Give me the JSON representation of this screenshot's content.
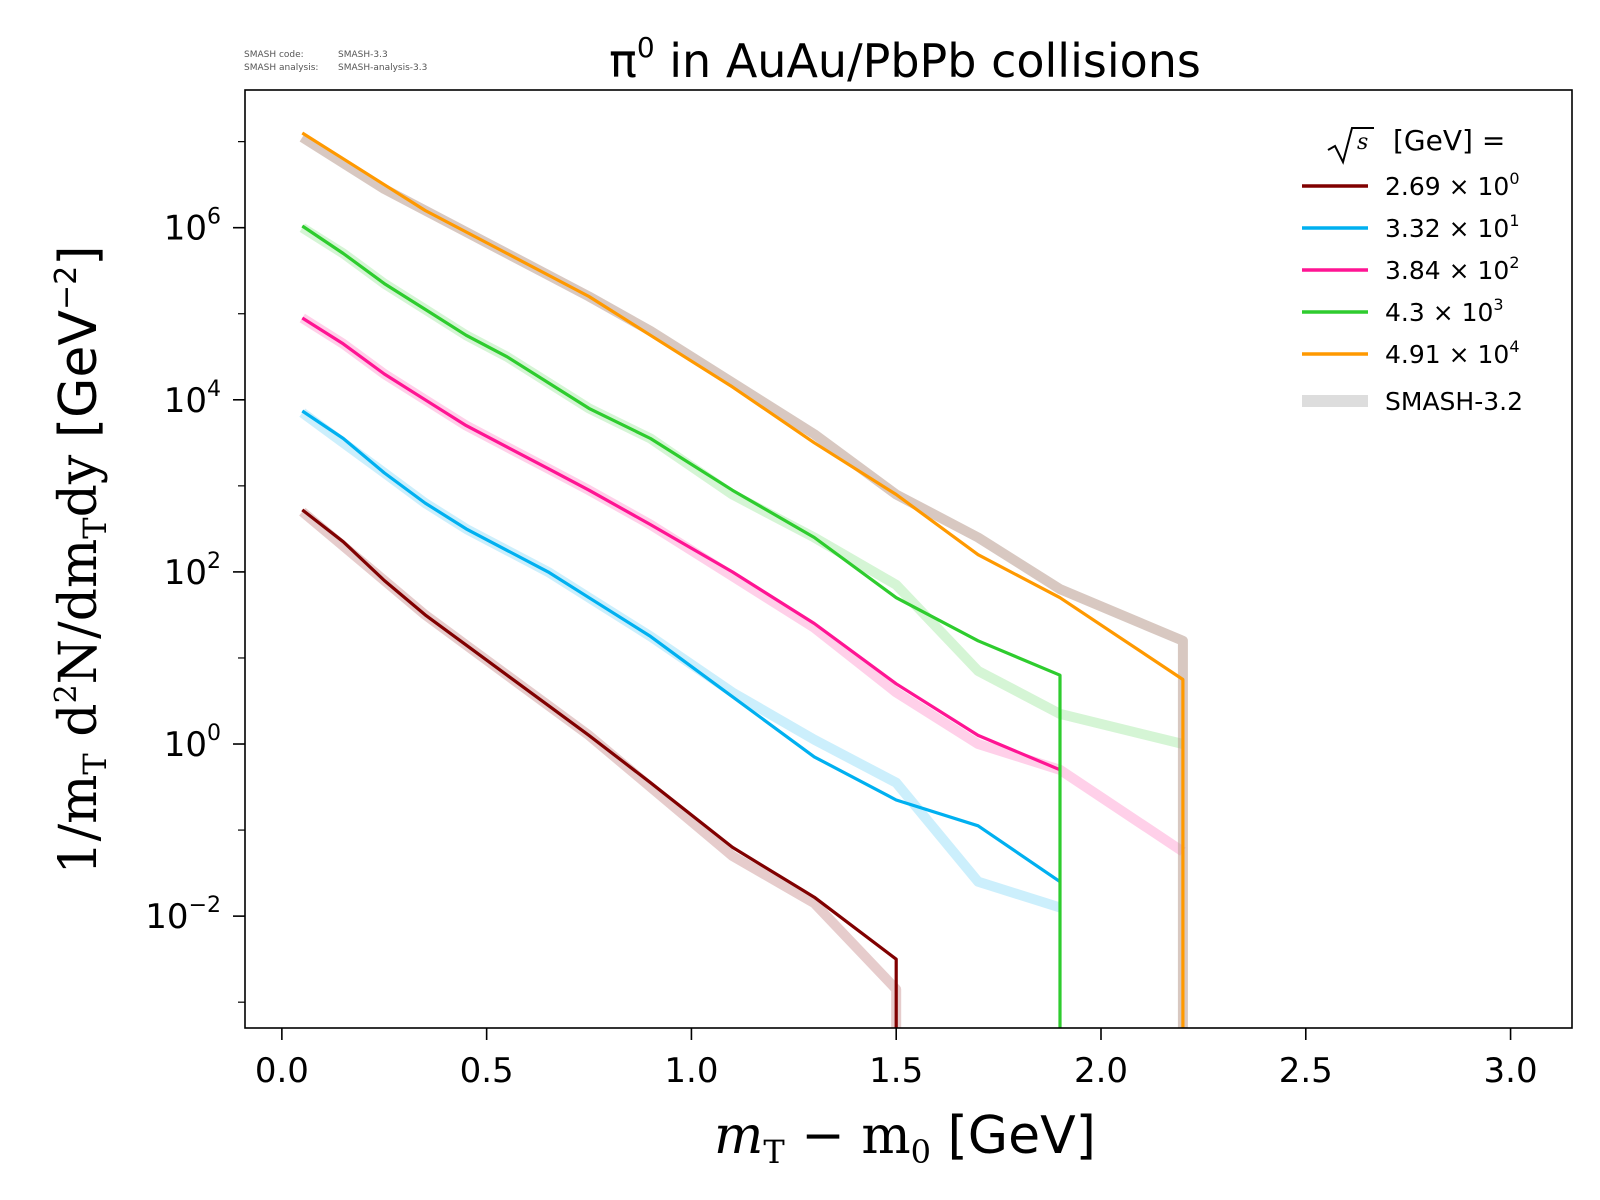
{
  "header": {
    "code_label": "SMASH code:",
    "code_value": "SMASH-3.3",
    "analysis_label": "SMASH analysis:",
    "analysis_value": "SMASH-analysis-3.3"
  },
  "colors": {
    "frame": "#000000",
    "reference": "#b89a8e",
    "reference_legend": "#dddddd"
  },
  "chart_data": {
    "type": "line",
    "title_sym": "π",
    "title_sup": "0",
    "title_rest": " in AuAu/PbPb collisions",
    "xlabel": "m_T − m_0 [GeV]",
    "ylabel": "1/m_T d²N/dm_T dy [GeV⁻²]",
    "xlim": [
      -0.09,
      3.15
    ],
    "ylim_log10": [
      -3.3,
      7.6
    ],
    "y_scale": "log",
    "grid": false,
    "legend_placement": "top-right",
    "legend_title": "[GeV] =",
    "x_ticks": [
      {
        "value": 0.0,
        "label": "0.0"
      },
      {
        "value": 0.5,
        "label": "0.5"
      },
      {
        "value": 1.0,
        "label": "1.0"
      },
      {
        "value": 1.5,
        "label": "1.5"
      },
      {
        "value": 2.0,
        "label": "2.0"
      },
      {
        "value": 2.5,
        "label": "2.5"
      },
      {
        "value": 3.0,
        "label": "3.0"
      }
    ],
    "y_ticks": [
      {
        "exp": -2,
        "base": "10",
        "sup": "−2"
      },
      {
        "exp": 0,
        "base": "10",
        "sup": "0"
      },
      {
        "exp": 2,
        "base": "10",
        "sup": "2"
      },
      {
        "exp": 4,
        "base": "10",
        "sup": "4"
      },
      {
        "exp": 6,
        "base": "10",
        "sup": "6"
      }
    ],
    "series": [
      {
        "name_mant": "2.69",
        "name_exp": "0",
        "color": "#800000",
        "x": [
          0.05,
          0.15,
          0.25,
          0.35,
          0.45,
          0.55,
          0.65,
          0.75,
          0.9,
          1.1,
          1.3,
          1.5,
          1.5
        ],
        "log10_y": [
          2.72,
          2.35,
          1.9,
          1.5,
          1.15,
          0.8,
          0.45,
          0.1,
          -0.45,
          -1.2,
          -1.78,
          -2.5,
          -3.3
        ],
        "ref_x": [
          0.05,
          0.15,
          0.25,
          0.35,
          0.45,
          0.55,
          0.65,
          0.75,
          0.9,
          1.1,
          1.3,
          1.5,
          1.5
        ],
        "ref_log10_y": [
          2.7,
          2.3,
          1.9,
          1.5,
          1.15,
          0.8,
          0.45,
          0.1,
          -0.5,
          -1.3,
          -1.85,
          -2.85,
          -3.3
        ]
      },
      {
        "name_mant": "3.32",
        "name_exp": "1",
        "color": "#00b0f0",
        "x": [
          0.05,
          0.15,
          0.25,
          0.35,
          0.45,
          0.55,
          0.65,
          0.75,
          0.9,
          1.1,
          1.3,
          1.5,
          1.7,
          1.9
        ],
        "log10_y": [
          3.87,
          3.55,
          3.15,
          2.8,
          2.5,
          2.25,
          2.0,
          1.7,
          1.25,
          0.55,
          -0.15,
          -0.65,
          -0.95,
          -1.6
        ],
        "ref_x": [
          0.05,
          0.15,
          0.25,
          0.35,
          0.45,
          0.55,
          0.65,
          0.75,
          0.9,
          1.1,
          1.3,
          1.5,
          1.7,
          1.9
        ],
        "ref_log10_y": [
          3.85,
          3.5,
          3.15,
          2.8,
          2.5,
          2.25,
          2.0,
          1.7,
          1.25,
          0.6,
          0.05,
          -0.45,
          -1.6,
          -1.9
        ]
      },
      {
        "name_mant": "3.84",
        "name_exp": "2",
        "color": "#ff1493",
        "x": [
          0.05,
          0.15,
          0.25,
          0.35,
          0.45,
          0.55,
          0.65,
          0.75,
          0.9,
          1.1,
          1.3,
          1.5,
          1.7,
          1.9
        ],
        "log10_y": [
          4.95,
          4.65,
          4.3,
          4.0,
          3.7,
          3.45,
          3.2,
          2.95,
          2.55,
          2.0,
          1.4,
          0.7,
          0.1,
          -0.3
        ],
        "ref_x": [
          0.05,
          0.15,
          0.25,
          0.35,
          0.45,
          0.55,
          0.65,
          0.75,
          0.9,
          1.1,
          1.3,
          1.5,
          1.7,
          1.9,
          2.2
        ],
        "ref_log10_y": [
          4.95,
          4.65,
          4.3,
          4.0,
          3.7,
          3.45,
          3.2,
          2.95,
          2.55,
          1.95,
          1.35,
          0.6,
          0.0,
          -0.3,
          -1.25
        ]
      },
      {
        "name_mant": "4.3",
        "name_exp": "3",
        "color": "#2ecc2e",
        "x": [
          0.05,
          0.15,
          0.25,
          0.35,
          0.45,
          0.55,
          0.65,
          0.75,
          0.9,
          1.1,
          1.3,
          1.5,
          1.7,
          1.9,
          1.9
        ],
        "log10_y": [
          6.02,
          5.7,
          5.35,
          5.05,
          4.75,
          4.5,
          4.2,
          3.9,
          3.55,
          2.95,
          2.4,
          1.7,
          1.2,
          0.8,
          -3.3
        ],
        "ref_x": [
          0.05,
          0.15,
          0.25,
          0.35,
          0.45,
          0.55,
          0.65,
          0.75,
          0.9,
          1.1,
          1.3,
          1.5,
          1.7,
          1.9,
          2.2
        ],
        "ref_log10_y": [
          6.0,
          5.7,
          5.35,
          5.05,
          4.75,
          4.5,
          4.2,
          3.9,
          3.55,
          2.9,
          2.4,
          1.85,
          0.85,
          0.35,
          0.0
        ]
      },
      {
        "name_mant": "4.91",
        "name_exp": "4",
        "color": "#ff9900",
        "x": [
          0.05,
          0.15,
          0.25,
          0.35,
          0.45,
          0.55,
          0.65,
          0.75,
          0.9,
          1.1,
          1.3,
          1.5,
          1.7,
          1.9,
          2.2,
          2.2
        ],
        "log10_y": [
          7.1,
          6.8,
          6.5,
          6.2,
          5.95,
          5.7,
          5.45,
          5.2,
          4.75,
          4.15,
          3.5,
          2.9,
          2.2,
          1.7,
          0.75,
          -3.3
        ],
        "ref_x": [
          0.05,
          0.15,
          0.25,
          0.35,
          0.45,
          0.55,
          0.65,
          0.75,
          0.9,
          1.1,
          1.3,
          1.5,
          1.7,
          1.9,
          2.2,
          2.2
        ],
        "ref_log10_y": [
          7.05,
          6.75,
          6.45,
          6.2,
          5.95,
          5.7,
          5.45,
          5.2,
          4.8,
          4.2,
          3.6,
          2.9,
          2.4,
          1.8,
          1.2,
          -3.3
        ]
      }
    ],
    "reference_name": "SMASH-3.2"
  }
}
